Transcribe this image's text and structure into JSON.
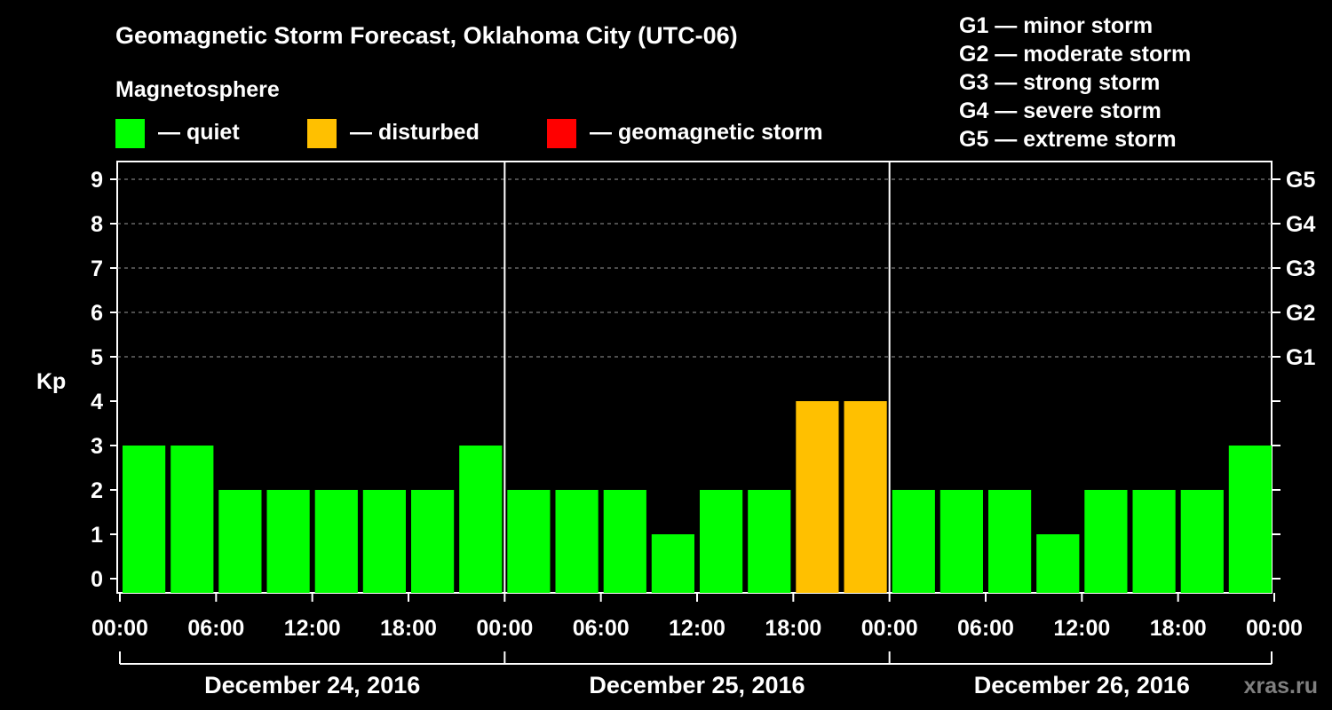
{
  "chart_data": {
    "type": "bar",
    "title": "Geomagnetic Storm Forecast, Oklahoma City (UTC-06)",
    "ylabel": "Kp",
    "ylim": [
      0,
      9
    ],
    "yticks": [
      "0",
      "1",
      "2",
      "3",
      "4",
      "5",
      "6",
      "7",
      "8",
      "9"
    ],
    "storm_axis": [
      {
        "kp": 5,
        "label": "G1"
      },
      {
        "kp": 6,
        "label": "G2"
      },
      {
        "kp": 7,
        "label": "G3"
      },
      {
        "kp": 8,
        "label": "G4"
      },
      {
        "kp": 9,
        "label": "G5"
      }
    ],
    "xtick_labels": [
      "00:00",
      "06:00",
      "12:00",
      "18:00",
      "00:00",
      "06:00",
      "12:00",
      "18:00",
      "00:00",
      "06:00",
      "12:00",
      "18:00",
      "00:00"
    ],
    "days": [
      "December 24, 2016",
      "December 25, 2016",
      "December 26, 2016"
    ],
    "values": [
      3,
      3,
      2,
      2,
      2,
      2,
      2,
      3,
      2,
      2,
      2,
      1,
      2,
      2,
      4,
      4,
      2,
      2,
      2,
      1,
      2,
      2,
      2,
      3
    ],
    "categories": [
      "quiet",
      "quiet",
      "quiet",
      "quiet",
      "quiet",
      "quiet",
      "quiet",
      "quiet",
      "quiet",
      "quiet",
      "quiet",
      "quiet",
      "quiet",
      "quiet",
      "disturbed",
      "disturbed",
      "quiet",
      "quiet",
      "quiet",
      "quiet",
      "quiet",
      "quiet",
      "quiet",
      "quiet"
    ],
    "grid": "dashed horizontal at Kp 5-9",
    "legend": {
      "title": "Magnetosphere",
      "items": [
        {
          "key": "quiet",
          "label": "— quiet",
          "color": "#00ff00"
        },
        {
          "key": "disturbed",
          "label": "— disturbed",
          "color": "#ffc000"
        },
        {
          "key": "storm",
          "label": "— geomagnetic storm",
          "color": "#ff0000"
        }
      ]
    },
    "scale_legend": [
      "G1 — minor storm",
      "G2 — moderate storm",
      "G3 — strong storm",
      "G4 — severe storm",
      "G5 — extreme storm"
    ],
    "credit": "xras.ru"
  }
}
